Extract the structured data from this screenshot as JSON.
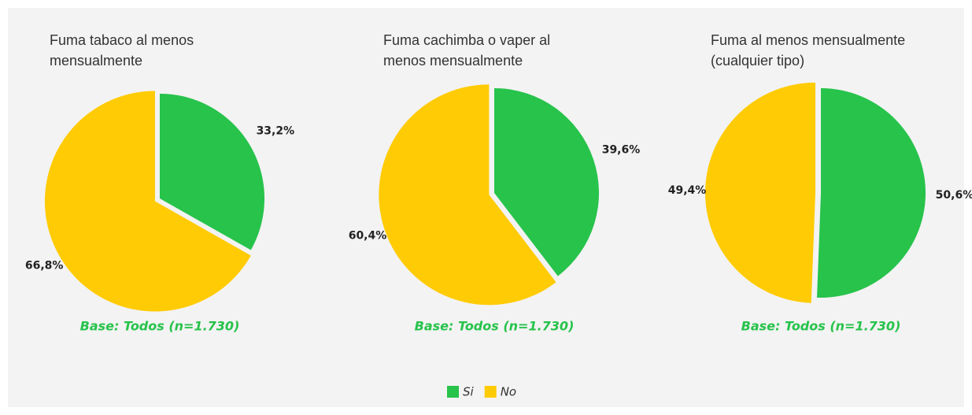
{
  "legend": [
    {
      "name": "Si",
      "color": "#27c34b"
    },
    {
      "name": "No",
      "color": "#ffcb05"
    }
  ],
  "chart_data": [
    {
      "type": "pie",
      "title": "Fuma tabaco al menos mensualmente",
      "values": [
        33.2,
        66.8
      ],
      "value_labels": [
        "33,2%",
        "66,8%"
      ],
      "note": "Base: Todos (n=1.730)"
    },
    {
      "type": "pie",
      "title": "Fuma cachimba o vaper al menos mensualmente",
      "values": [
        39.6,
        60.4
      ],
      "value_labels": [
        "39,6%",
        "60,4%"
      ],
      "note": "Base: Todos (n=1.730)"
    },
    {
      "type": "pie",
      "title": "Fuma al menos mensualmente (cualquier tipo)",
      "values": [
        50.6,
        49.4
      ],
      "value_labels": [
        "50,6%",
        "49,4%"
      ],
      "note": "Base: Todos (n=1.730)"
    }
  ]
}
